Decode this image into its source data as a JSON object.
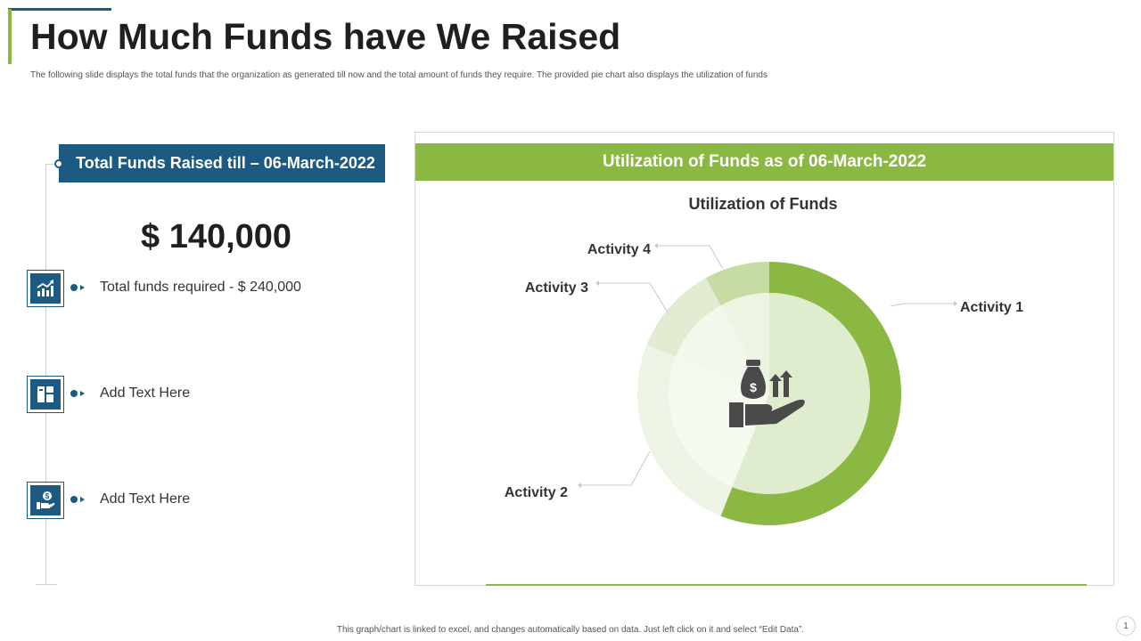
{
  "title": "How Much Funds have We Raised",
  "subtitle": "The following slide displays the total funds that the organization as generated till now and the total amount of funds they require. The provided pie chart also displays the utilization of funds",
  "left": {
    "header": "Total Funds Raised till – 06-March-2022",
    "amount": "$ 140,000",
    "items": [
      {
        "icon": "growth-chart-icon",
        "text": "Total funds required - $ 240,000"
      },
      {
        "icon": "blocks-icon",
        "text": "Add Text Here"
      },
      {
        "icon": "money-hand-icon",
        "text": "Add Text Here"
      }
    ]
  },
  "panel": {
    "header": "Utilization of Funds as of 06-March-2022"
  },
  "chart_data": {
    "type": "pie",
    "title": "Utilization of Funds",
    "categories": [
      "Activity 1",
      "Activity 2",
      "Activity 3",
      "Activity 4"
    ],
    "values": [
      56,
      25,
      11,
      8
    ],
    "colors": [
      "#8ab843",
      "#eef4e5",
      "#e1ecd2",
      "#c6dca4"
    ],
    "center_icon": "money-bag-hand-icon"
  },
  "colors": {
    "primary_blue": "#1d5a82",
    "primary_green": "#8ab843"
  },
  "footer": "This graph/chart is linked to excel, and changes automatically based on data. Just left click on it and select “Edit Data”.",
  "page_number": "1"
}
